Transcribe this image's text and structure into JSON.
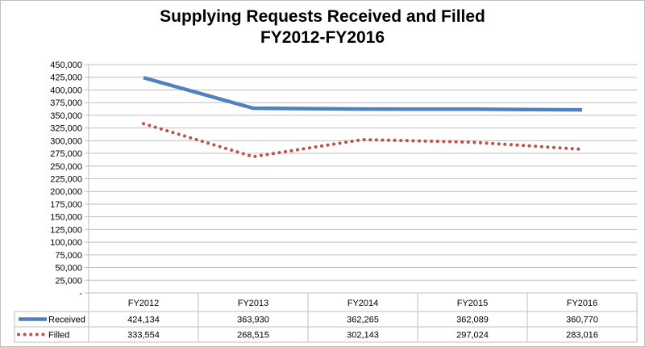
{
  "title_line1": "Supplying Requests Received and Filled",
  "title_line2": "FY2012-FY2016",
  "colors": {
    "received": "#4f81bd",
    "filled": "#c0504d",
    "grid": "#bfbfbf"
  },
  "chart_data": {
    "type": "line",
    "title": "Supplying Requests Received and Filled FY2012-FY2016",
    "categories": [
      "FY2012",
      "FY2013",
      "FY2014",
      "FY2015",
      "FY2016"
    ],
    "series": [
      {
        "name": "Received",
        "values": [
          424134,
          363930,
          362265,
          362089,
          360770
        ],
        "labels": [
          "424,134",
          "363,930",
          "362,265",
          "362,089",
          "360,770"
        ],
        "style": "solid"
      },
      {
        "name": "Filled",
        "values": [
          333554,
          268515,
          302143,
          297024,
          283016
        ],
        "labels": [
          "333,554",
          "268,515",
          "302,143",
          "297,024",
          "283,016"
        ],
        "style": "dotted"
      }
    ],
    "ylim": [
      0,
      450000
    ],
    "ytick_labels": [
      "-",
      "25,000",
      "50,000",
      "75,000",
      "100,000",
      "125,000",
      "150,000",
      "175,000",
      "200,000",
      "225,000",
      "250,000",
      "275,000",
      "300,000",
      "325,000",
      "350,000",
      "375,000",
      "400,000",
      "425,000",
      "450,000"
    ],
    "grid": true,
    "legend": "data-table"
  }
}
